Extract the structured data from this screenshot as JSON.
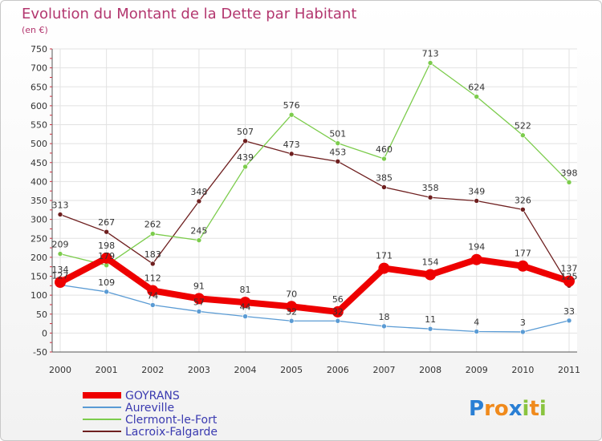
{
  "chart_data": {
    "type": "line",
    "title": "Evolution du Montant de la Dette par Habitant",
    "subtitle": "(en €)",
    "xlabel": "",
    "ylabel": "",
    "ylim": [
      -50,
      750
    ],
    "yticks": [
      -50,
      0,
      50,
      100,
      150,
      200,
      250,
      300,
      350,
      400,
      450,
      500,
      550,
      600,
      650,
      700,
      750
    ],
    "categories": [
      "2000",
      "2001",
      "2002",
      "2003",
      "2004",
      "2005",
      "2006",
      "2007",
      "2008",
      "2009",
      "2010",
      "2011"
    ],
    "grid": true,
    "legend_position": "bottom-left",
    "series": [
      {
        "name": "Lacroix-Falgarde",
        "color": "#6e1f1f",
        "values": [
          313,
          267,
          183,
          348,
          507,
          473,
          453,
          385,
          358,
          349,
          326,
          125
        ]
      },
      {
        "name": "Clermont-le-Fort",
        "color": "#7ccc4c",
        "values": [
          209,
          179,
          262,
          245,
          439,
          576,
          501,
          460,
          713,
          624,
          522,
          398
        ]
      },
      {
        "name": "Aureville",
        "color": "#5a9bd4",
        "values": [
          127,
          109,
          74,
          57,
          44,
          32,
          32,
          18,
          11,
          4,
          3,
          33
        ]
      },
      {
        "name": "GOYRANS",
        "color": "#ee0000",
        "values": [
          134,
          198,
          112,
          91,
          81,
          70,
          56,
          171,
          154,
          194,
          177,
          137
        ]
      }
    ],
    "legend_order": [
      "GOYRANS",
      "Aureville",
      "Clermont-le-Fort",
      "Lacroix-Falgarde"
    ]
  },
  "logo": {
    "letters": [
      "P",
      "r",
      "o",
      "x",
      "i",
      "t",
      "i"
    ],
    "colors": [
      "#2a7fd4",
      "#f08a1c",
      "#f08a1c",
      "#2a7fd4",
      "#8ac43f",
      "#f08a1c",
      "#8ac43f"
    ]
  }
}
